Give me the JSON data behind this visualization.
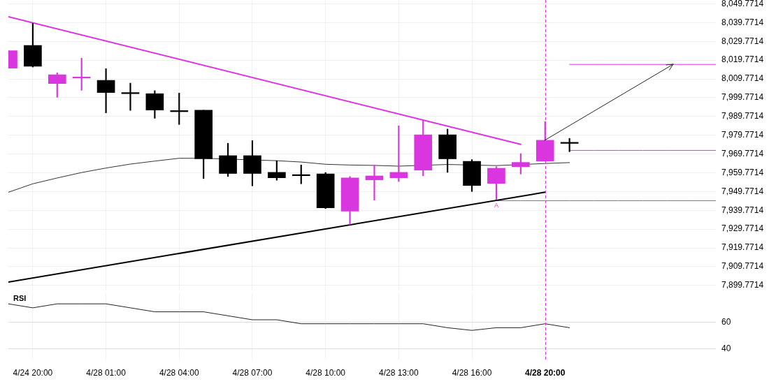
{
  "chart_data": [
    {
      "type": "candlestick",
      "categories": [
        null,
        "4/24 20:00",
        null,
        null,
        "4/28 01:00",
        null,
        null,
        "4/28 04:00",
        null,
        null,
        "4/28 07:00",
        null,
        null,
        "4/28 10:00",
        null,
        null,
        "4/28 13:00",
        null,
        null,
        "4/28 16:00",
        null,
        null,
        "4/28 20:00",
        null,
        null,
        null,
        null,
        null,
        null,
        null
      ],
      "ohlc": [
        [
          8015.5,
          8024.8,
          8015.5,
          8024.8
        ],
        [
          8027.6,
          8039.4,
          8016.1,
          8016.5
        ],
        [
          8007.3,
          8013.0,
          8000.0,
          8012.0
        ],
        [
          8010.2,
          8020.8,
          8003.7,
          8010.8
        ],
        [
          8009.0,
          8015.2,
          7991.7,
          8002.5
        ],
        [
          8002.5,
          8007.5,
          7993.0,
          8001.9
        ],
        [
          8001.9,
          8003.5,
          7988.8,
          7993.2
        ],
        [
          7992.9,
          8002.2,
          7985.5,
          7992.3
        ],
        [
          7993.1,
          7993.1,
          7956.7,
          7967.2
        ],
        [
          7968.9,
          7975.5,
          7957.8,
          7959.4
        ],
        [
          7968.9,
          7976.9,
          7952.8,
          7959.4
        ],
        [
          7960.0,
          7966.2,
          7955.8,
          7957.1
        ],
        [
          7958.8,
          7963.9,
          7953.9,
          7958.2
        ],
        [
          7959.2,
          7959.9,
          7940.7,
          7941.1
        ],
        [
          7939.3,
          7957.8,
          7932.2,
          7957.0
        ],
        [
          7956.0,
          7963.9,
          7945.2,
          7958.1
        ],
        [
          7957.1,
          7984.8,
          7955.1,
          7960.0
        ],
        [
          7961.2,
          7987.9,
          7958.1,
          7980.0
        ],
        [
          7980.0,
          7983.0,
          7960.0,
          7967.2
        ],
        [
          7965.9,
          7966.8,
          7949.8,
          7953.0
        ],
        [
          7954.1,
          7963.0,
          7945.6,
          7962.2
        ],
        [
          7963.0,
          7970.0,
          7959.1,
          7965.3
        ],
        [
          7966.0,
          7987.1,
          7966.0,
          7977.1
        ],
        [
          7976.0,
          7978.1,
          7971.0,
          7975.4
        ],
        null,
        null,
        null,
        null,
        null,
        null
      ],
      "colors": [
        "#d936e0",
        "#000000",
        "#d936e0",
        "#d936e0",
        "#000000",
        "#000000",
        "#000000",
        "#000000",
        "#000000",
        "#000000",
        "#000000",
        "#000000",
        "#000000",
        "#000000",
        "#d936e0",
        "#d936e0",
        "#d936e0",
        "#d936e0",
        "#000000",
        "#000000",
        "#d936e0",
        "#d936e0",
        "#d936e0",
        "#000000",
        null,
        null,
        null,
        null,
        null,
        null
      ],
      "series": [
        {
          "type": "line",
          "color": "#333333",
          "values": [
            7949.4,
            7953.9,
            7957.0,
            7959.9,
            7962.3,
            7964.4,
            7966.0,
            7967.5,
            7967.5,
            null,
            null,
            7966.2,
            7965.5,
            7964.3,
            7963.9,
            7963.7,
            7963.3,
            null,
            7964.2,
            null,
            7963.6,
            null,
            7964.7,
            7965.2,
            null,
            null,
            null,
            null,
            null,
            null
          ]
        },
        {
          "type": "line",
          "color": "#d936e0",
          "values": [
            8042.9,
            null,
            null,
            null,
            null,
            null,
            null,
            null,
            null,
            null,
            null,
            null,
            null,
            null,
            null,
            null,
            null,
            null,
            null,
            null,
            null,
            7974.9,
            null,
            null,
            null,
            null,
            null,
            null,
            null,
            null
          ]
        },
        {
          "type": "line",
          "color": "#000000",
          "values": [
            7901.6,
            null,
            null,
            null,
            null,
            null,
            null,
            null,
            null,
            null,
            null,
            null,
            null,
            null,
            null,
            null,
            null,
            null,
            null,
            null,
            null,
            null,
            7949.4,
            null,
            null,
            null,
            null,
            null,
            null,
            null
          ]
        },
        {
          "type": "line",
          "color": "#d936e0",
          "values": [
            null,
            null,
            null,
            null,
            null,
            null,
            null,
            null,
            null,
            null,
            null,
            null,
            null,
            null,
            null,
            null,
            null,
            null,
            null,
            null,
            null,
            null,
            null,
            8017.5,
            8017.5,
            8017.5,
            8017.5,
            8017.5,
            8017.5,
            8017.5
          ]
        },
        {
          "type": "line",
          "color": "#d936e0",
          "values": [
            null,
            null,
            null,
            null,
            null,
            null,
            null,
            null,
            null,
            null,
            null,
            null,
            null,
            null,
            null,
            null,
            null,
            null,
            null,
            null,
            null,
            null,
            null,
            7971.7,
            7971.7,
            7971.7,
            7971.7,
            7971.7,
            7971.7,
            7971.7
          ]
        },
        {
          "type": "line",
          "name": "A",
          "color": "#d936e0",
          "values": [
            null,
            null,
            null,
            null,
            null,
            null,
            null,
            null,
            null,
            null,
            null,
            null,
            null,
            null,
            null,
            null,
            null,
            null,
            null,
            null,
            7944.9,
            7944.9,
            7944.9,
            7944.9,
            7944.9,
            7944.9,
            7944.9,
            7944.9,
            7944.9,
            7944.9
          ]
        }
      ],
      "ylim": [
        7897.1,
        8051.8
      ],
      "yticks": [
        {
          "value": 7899.7714,
          "label": "7,899.7714"
        },
        {
          "value": 7909.7714,
          "label": "7,909.7714"
        },
        {
          "value": 7919.7714,
          "label": "7,919.7714"
        },
        {
          "value": 7929.7714,
          "label": "7,929.7714"
        },
        {
          "value": 7939.7714,
          "label": "7,939.7714"
        },
        {
          "value": 7949.7714,
          "label": "7,949.7714"
        },
        {
          "value": 7959.7714,
          "label": "7,959.7714"
        },
        {
          "value": 7969.7714,
          "label": "7,969.7714"
        },
        {
          "value": 7979.7714,
          "label": "7,979.7714"
        },
        {
          "value": 7989.7714,
          "label": "7,989.7714"
        },
        {
          "value": 7999.7714,
          "label": "7,999.7714"
        },
        {
          "value": 8009.7714,
          "label": "8,009.7714"
        },
        {
          "value": 8019.7714,
          "label": "8,019.7714"
        },
        {
          "value": 8029.7714,
          "label": "8,029.7714"
        },
        {
          "value": 8039.7714,
          "label": "8,039.7714"
        },
        {
          "value": 8049.7714,
          "label": "8,049.7714"
        }
      ],
      "grid": true,
      "tick_labels": "y",
      "ref_lines": [
        {
          "axis": "x",
          "value": "4/28 20:00",
          "color": "#d936e0",
          "line_style": "dashed"
        }
      ]
    },
    {
      "type": "line",
      "title": "RSI",
      "categories": [
        null,
        "4/24 20:00",
        null,
        null,
        "4/28 01:00",
        null,
        null,
        "4/28 04:00",
        null,
        null,
        "4/28 07:00",
        null,
        null,
        "4/28 10:00",
        null,
        null,
        "4/28 13:00",
        null,
        null,
        "4/28 16:00",
        null,
        null,
        "4/28 20:00",
        null,
        null,
        null,
        null,
        null,
        null,
        null
      ],
      "series": [
        {
          "color": "#222222",
          "values": [
            74,
            71,
            74,
            74,
            74,
            71,
            68,
            68,
            68,
            65,
            62,
            62,
            59,
            59,
            59,
            59,
            59,
            59,
            56,
            54,
            56,
            56,
            59,
            56,
            null,
            null,
            null,
            null,
            null,
            null
          ]
        }
      ],
      "ylim": [
        32,
        82
      ],
      "yticks": [
        40,
        60
      ],
      "grid": true,
      "ref_lines": [
        {
          "axis": "x",
          "value": "4/28 20:00",
          "color": "#d936e0",
          "line_style": "dashed"
        }
      ]
    }
  ]
}
